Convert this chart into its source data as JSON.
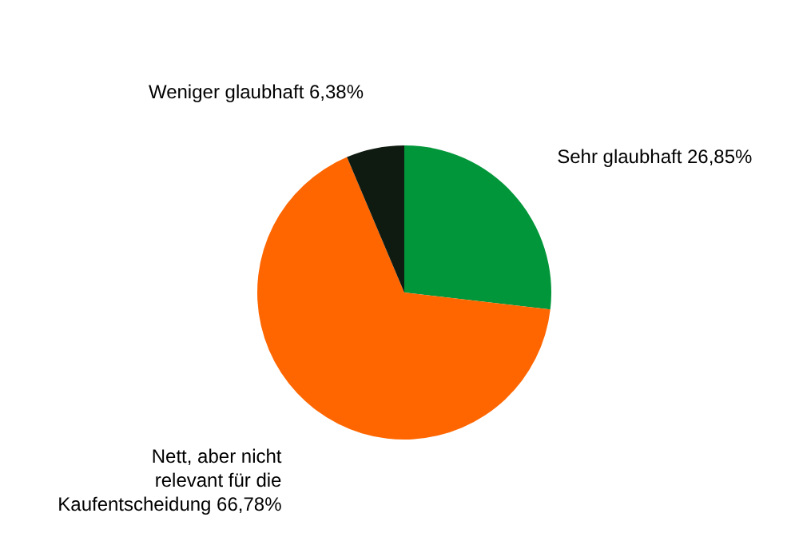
{
  "chart_data": {
    "type": "pie",
    "categories": [
      "Sehr glaubhaft",
      "Nett, aber nicht relevant für die Kaufentscheidung",
      "Weniger glaubhaft"
    ],
    "values": [
      26.85,
      66.78,
      6.38
    ],
    "colors": [
      "#009639",
      "#ff6600",
      "#0f1a10"
    ],
    "value_labels": [
      "26,85%",
      "66,78%",
      "6,38%"
    ]
  }
}
